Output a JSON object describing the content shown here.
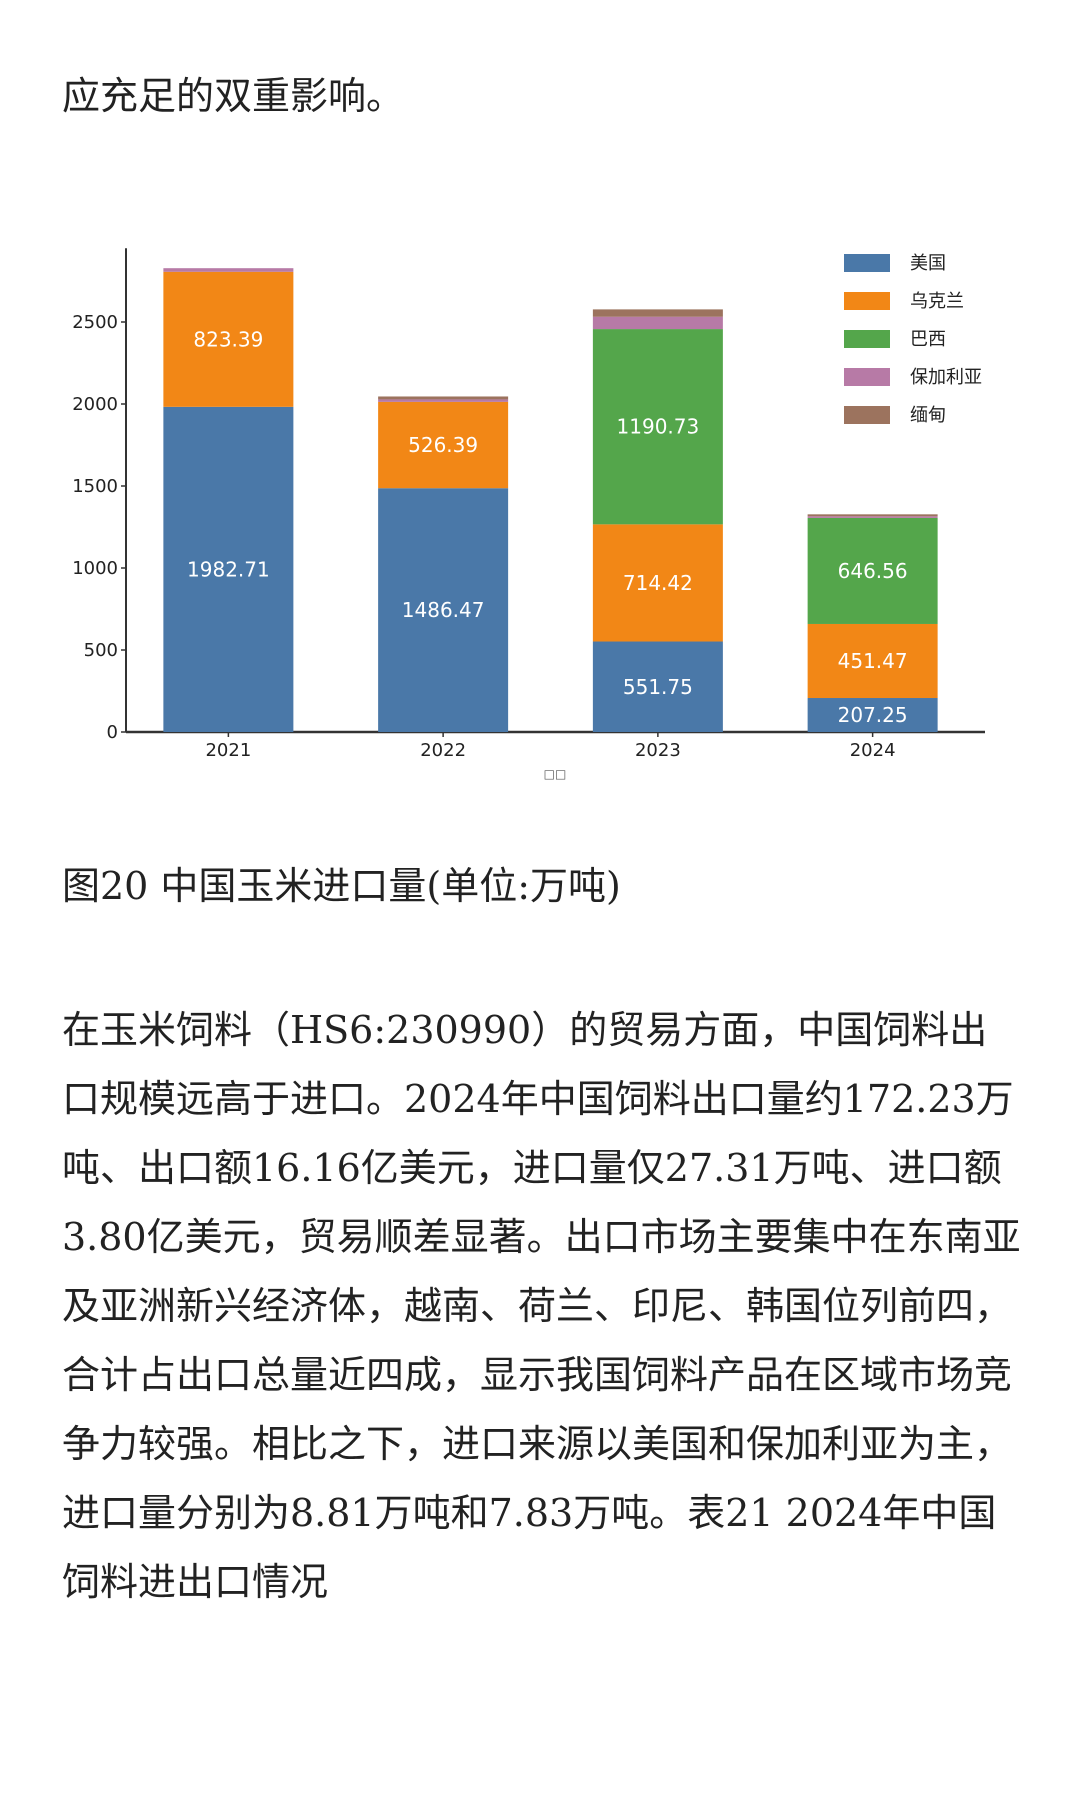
{
  "text": {
    "intro_tail": "应充足的双重影响。",
    "caption": "图20 中国玉米进口量(单位:万吨)",
    "paragraph": "在玉米饲料（HS6:230990）的贸易方面，中国饲料出口规模远高于进口。2024年中国饲料出口量约172.23万吨、出口额16.16亿美元，进口量仅27.31万吨、进口额3.80亿美元，贸易顺差显著。出口市场主要集中在东南亚及亚洲新兴经济体，越南、荷兰、印尼、韩国位列前四，合计占出口总量近四成，显示我国饲料产品在区域市场竞争力较强。相比之下，进口来源以美国和保加利亚为主，进口量分别为8.81万吨和7.83万吨。表21 2024年中国饲料进出口情况"
  },
  "chart_data": {
    "type": "bar",
    "stacked": true,
    "categories": [
      "2021",
      "2022",
      "2023",
      "2024"
    ],
    "series": [
      {
        "name": "美国",
        "color": "#4a78a8",
        "values": [
          1982.71,
          1486.47,
          551.75,
          207.25
        ],
        "labels": [
          "1982.71",
          "1486.47",
          "551.75",
          "207.25"
        ]
      },
      {
        "name": "乌克兰",
        "color": "#f28716",
        "values": [
          823.39,
          526.39,
          714.42,
          451.47
        ],
        "labels": [
          "823.39",
          "526.39",
          "714.42",
          "451.47"
        ]
      },
      {
        "name": "巴西",
        "color": "#54a64b",
        "values": [
          0,
          0,
          1190.73,
          646.56
        ],
        "labels": [
          "",
          "",
          "1190.73",
          "646.56"
        ]
      },
      {
        "name": "保加利亚",
        "color": "#b77aa6",
        "values": [
          22,
          15,
          75,
          10
        ],
        "labels": [
          "",
          "",
          "",
          ""
        ]
      },
      {
        "name": "缅甸",
        "color": "#9c735e",
        "values": [
          0,
          18,
          45,
          12
        ],
        "labels": [
          "",
          "",
          "",
          ""
        ]
      }
    ],
    "yticks": [
      0,
      500,
      1000,
      1500,
      2000,
      2500
    ],
    "ylim": [
      0,
      2950
    ],
    "xlabel": "□□",
    "legend_position": "top-right",
    "grid": false
  }
}
